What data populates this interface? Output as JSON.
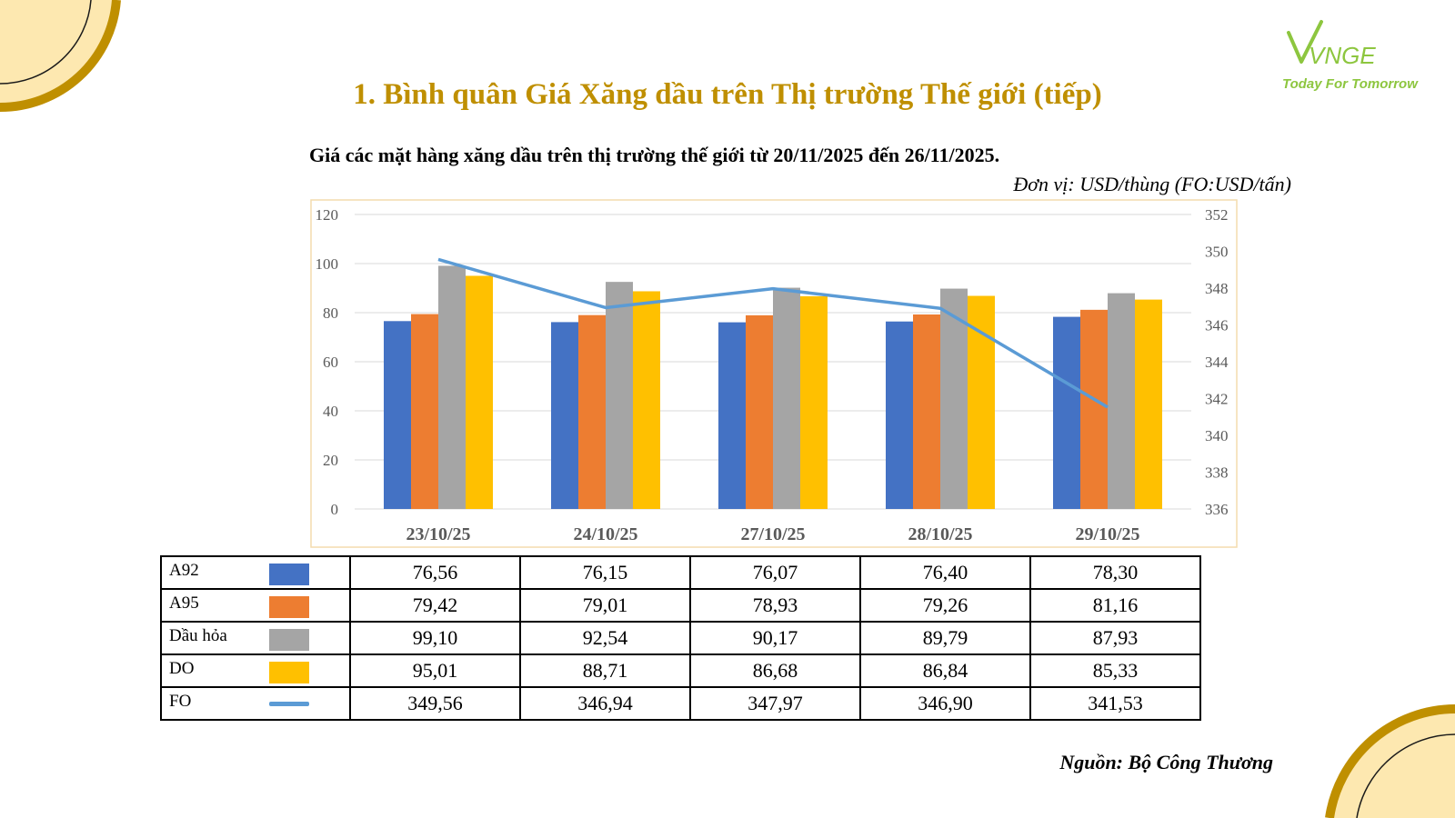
{
  "header": {
    "title": "1. Bình quân Giá Xăng dầu trên Thị trường Thế giới (tiếp)",
    "subtitle": "Giá các mặt hàng xăng dầu trên thị trường thế giới từ 20/11/2025 đến 26/11/2025.",
    "unit": "Đơn vị: USD/thùng (FO:USD/tấn)"
  },
  "logo": {
    "mark": "VNGE",
    "tagline": "Today For Tomorrow"
  },
  "colors": {
    "gold": "#bf8f00",
    "A92": "#4472c4",
    "A95": "#ed7d31",
    "Dau_hoa": "#a5a5a5",
    "DO": "#ffc000",
    "FO": "#5b9bd5",
    "logo_green": "#8dc63f"
  },
  "chart_data": {
    "type": "bar",
    "categories": [
      "23/10/25",
      "24/10/25",
      "27/10/25",
      "28/10/25",
      "29/10/25"
    ],
    "series": [
      {
        "name": "A92",
        "type": "bar",
        "axis": "left",
        "color": "#4472c4",
        "values": [
          76.56,
          76.15,
          76.07,
          76.4,
          78.3
        ],
        "display": [
          "76,56",
          "76,15",
          "76,07",
          "76,40",
          "78,30"
        ]
      },
      {
        "name": "A95",
        "type": "bar",
        "axis": "left",
        "color": "#ed7d31",
        "values": [
          79.42,
          79.01,
          78.93,
          79.26,
          81.16
        ],
        "display": [
          "79,42",
          "79,01",
          "78,93",
          "79,26",
          "81,16"
        ]
      },
      {
        "name": "Dầu hỏa",
        "type": "bar",
        "axis": "left",
        "color": "#a5a5a5",
        "values": [
          99.1,
          92.54,
          90.17,
          89.79,
          87.93
        ],
        "display": [
          "99,10",
          "92,54",
          "90,17",
          "89,79",
          "87,93"
        ]
      },
      {
        "name": "DO",
        "type": "bar",
        "axis": "left",
        "color": "#ffc000",
        "values": [
          95.01,
          88.71,
          86.68,
          86.84,
          85.33
        ],
        "display": [
          "95,01",
          "88,71",
          "86,68",
          "86,84",
          "85,33"
        ]
      },
      {
        "name": "FO",
        "type": "line",
        "axis": "right",
        "color": "#5b9bd5",
        "values": [
          349.56,
          346.94,
          347.97,
          346.9,
          341.53
        ],
        "display": [
          "349,56",
          "346,94",
          "347,97",
          "346,90",
          "341,53"
        ]
      }
    ],
    "ylim": [
      0,
      120
    ],
    "yticks": [
      0,
      20,
      40,
      60,
      80,
      100,
      120
    ],
    "y2lim": [
      336,
      352
    ],
    "y2ticks": [
      336,
      338,
      340,
      342,
      344,
      346,
      348,
      350,
      352
    ],
    "grid": true,
    "legend": "data table below chart"
  },
  "source": "Nguồn: Bộ Công Thương"
}
